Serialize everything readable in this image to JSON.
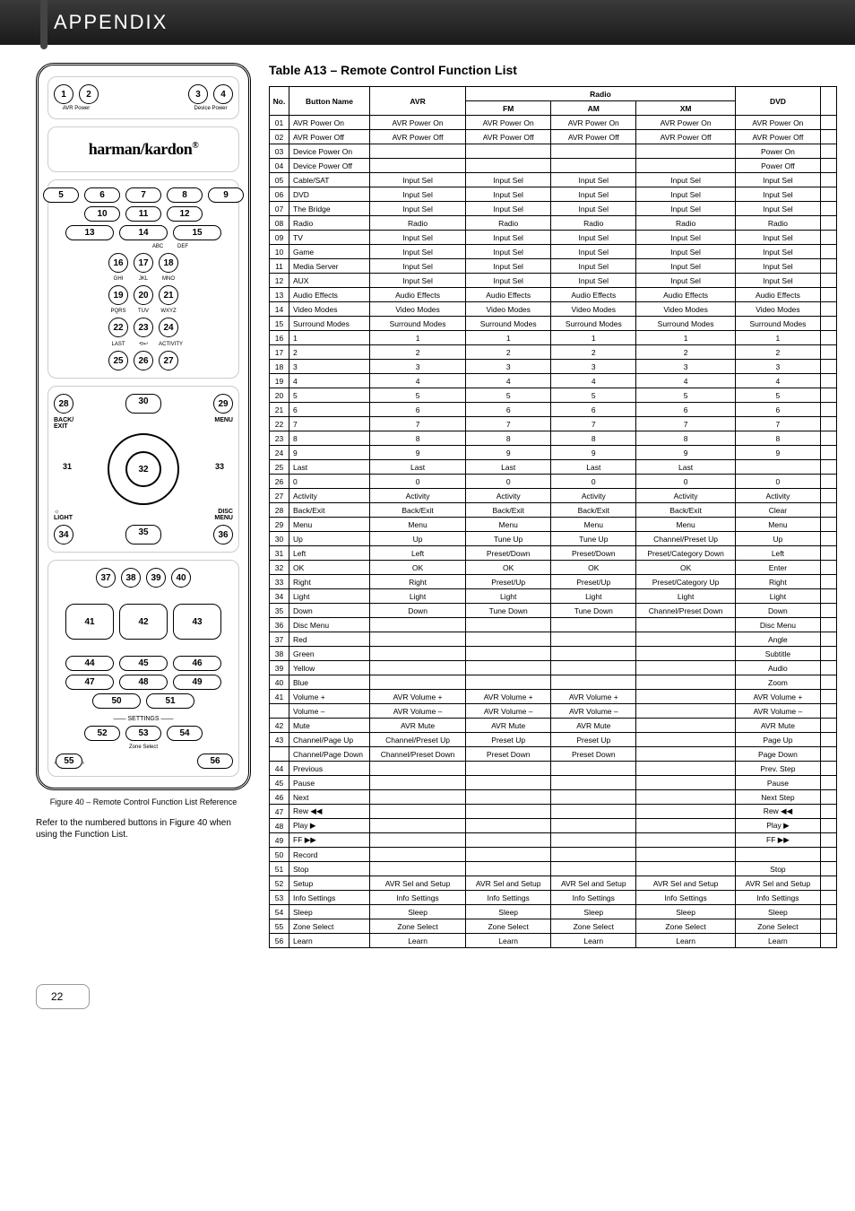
{
  "header": {
    "title": "APPENDIX"
  },
  "remote": {
    "brand": "harman/kardon",
    "top_labels": {
      "avr_power": "AVR Power",
      "device_power": "Device Power"
    },
    "keypad_sublabels": [
      "ABC",
      "DEF",
      "GHI",
      "JKL",
      "MNO",
      "PQRS",
      "TUV",
      "WXYZ",
      "LAST",
      "",
      "ACTIVITY"
    ],
    "nav": {
      "back": "BACK/\nEXIT",
      "menu": "MENU",
      "light": "LIGHT",
      "disc_menu": "DISC\nMENU"
    },
    "settings_label": "SETTINGS",
    "zone_label": "Zone Select",
    "caption": "Figure 40 – Remote Control Function List Reference",
    "note": "Refer to the numbered buttons in Figure 40 when using the Function List.",
    "numbers": [
      "1",
      "2",
      "3",
      "4",
      "5",
      "6",
      "7",
      "8",
      "9",
      "10",
      "11",
      "12",
      "13",
      "14",
      "15",
      "16",
      "17",
      "18",
      "19",
      "20",
      "21",
      "22",
      "23",
      "24",
      "25",
      "26",
      "27",
      "28",
      "29",
      "30",
      "31",
      "32",
      "33",
      "34",
      "35",
      "36",
      "37",
      "38",
      "39",
      "40",
      "41",
      "42",
      "43",
      "44",
      "45",
      "46",
      "47",
      "48",
      "49",
      "50",
      "51",
      "52",
      "53",
      "54",
      "55",
      "56"
    ]
  },
  "table": {
    "title": "Table A13 –   Remote Control Function List",
    "group_header": "Radio",
    "columns": [
      "No.",
      "Button Name",
      "AVR",
      "FM",
      "AM",
      "XM",
      "DVD",
      ""
    ],
    "rows": [
      [
        "01",
        "AVR Power On",
        "AVR Power On",
        "AVR Power On",
        "AVR Power On",
        "AVR Power On",
        "AVR Power On",
        ""
      ],
      [
        "02",
        "AVR Power Off",
        "AVR Power Off",
        "AVR Power Off",
        "AVR Power Off",
        "AVR Power Off",
        "AVR Power Off",
        ""
      ],
      [
        "03",
        "Device Power On",
        "",
        "",
        "",
        "",
        "Power On",
        ""
      ],
      [
        "04",
        "Device Power Off",
        "",
        "",
        "",
        "",
        "Power Off",
        ""
      ],
      [
        "05",
        "Cable/SAT",
        "Input Sel",
        "Input Sel",
        "Input Sel",
        "Input Sel",
        "Input Sel",
        ""
      ],
      [
        "06",
        "DVD",
        "Input Sel",
        "Input Sel",
        "Input Sel",
        "Input Sel",
        "Input Sel",
        ""
      ],
      [
        "07",
        "The Bridge",
        "Input Sel",
        "Input Sel",
        "Input Sel",
        "Input Sel",
        "Input Sel",
        ""
      ],
      [
        "08",
        "Radio",
        "Radio",
        "Radio",
        "Radio",
        "Radio",
        "Radio",
        ""
      ],
      [
        "09",
        "TV",
        "Input Sel",
        "Input Sel",
        "Input Sel",
        "Input Sel",
        "Input Sel",
        ""
      ],
      [
        "10",
        "Game",
        "Input Sel",
        "Input Sel",
        "Input Sel",
        "Input Sel",
        "Input Sel",
        ""
      ],
      [
        "11",
        "Media Server",
        "Input Sel",
        "Input Sel",
        "Input Sel",
        "Input Sel",
        "Input Sel",
        ""
      ],
      [
        "12",
        "AUX",
        "Input Sel",
        "Input Sel",
        "Input Sel",
        "Input Sel",
        "Input Sel",
        ""
      ],
      [
        "13",
        "Audio Effects",
        "Audio Effects",
        "Audio Effects",
        "Audio Effects",
        "Audio Effects",
        "Audio Effects",
        ""
      ],
      [
        "14",
        "Video Modes",
        "Video Modes",
        "Video Modes",
        "Video Modes",
        "Video Modes",
        "Video Modes",
        ""
      ],
      [
        "15",
        "Surround Modes",
        "Surround Modes",
        "Surround Modes",
        "Surround Modes",
        "Surround Modes",
        "Surround Modes",
        ""
      ],
      [
        "16",
        "1",
        "1",
        "1",
        "1",
        "1",
        "1",
        ""
      ],
      [
        "17",
        "2",
        "2",
        "2",
        "2",
        "2",
        "2",
        ""
      ],
      [
        "18",
        "3",
        "3",
        "3",
        "3",
        "3",
        "3",
        ""
      ],
      [
        "19",
        "4",
        "4",
        "4",
        "4",
        "4",
        "4",
        ""
      ],
      [
        "20",
        "5",
        "5",
        "5",
        "5",
        "5",
        "5",
        ""
      ],
      [
        "21",
        "6",
        "6",
        "6",
        "6",
        "6",
        "6",
        ""
      ],
      [
        "22",
        "7",
        "7",
        "7",
        "7",
        "7",
        "7",
        ""
      ],
      [
        "23",
        "8",
        "8",
        "8",
        "8",
        "8",
        "8",
        ""
      ],
      [
        "24",
        "9",
        "9",
        "9",
        "9",
        "9",
        "9",
        ""
      ],
      [
        "25",
        "Last",
        "Last",
        "Last",
        "Last",
        "Last",
        "",
        ""
      ],
      [
        "26",
        "0",
        "0",
        "0",
        "0",
        "0",
        "0",
        ""
      ],
      [
        "27",
        "Activity",
        "Activity",
        "Activity",
        "Activity",
        "Activity",
        "Activity",
        ""
      ],
      [
        "28",
        "Back/Exit",
        "Back/Exit",
        "Back/Exit",
        "Back/Exit",
        "Back/Exit",
        "Clear",
        ""
      ],
      [
        "29",
        "Menu",
        "Menu",
        "Menu",
        "Menu",
        "Menu",
        "Menu",
        ""
      ],
      [
        "30",
        "Up",
        "Up",
        "Tune Up",
        "Tune Up",
        "Channel/Preset Up",
        "Up",
        ""
      ],
      [
        "31",
        "Left",
        "Left",
        "Preset/Down",
        "Preset/Down",
        "Preset/Category Down",
        "Left",
        ""
      ],
      [
        "32",
        "OK",
        "OK",
        "OK",
        "OK",
        "OK",
        "Enter",
        ""
      ],
      [
        "33",
        "Right",
        "Right",
        "Preset/Up",
        "Preset/Up",
        "Preset/Category Up",
        "Right",
        ""
      ],
      [
        "34",
        "Light",
        "Light",
        "Light",
        "Light",
        "Light",
        "Light",
        ""
      ],
      [
        "35",
        "Down",
        "Down",
        "Tune Down",
        "Tune Down",
        "Channel/Preset Down",
        "Down",
        ""
      ],
      [
        "36",
        "Disc Menu",
        "",
        "",
        "",
        "",
        "Disc Menu",
        ""
      ],
      [
        "37",
        "Red",
        "",
        "",
        "",
        "",
        "Angle",
        ""
      ],
      [
        "38",
        "Green",
        "",
        "",
        "",
        "",
        "Subtitle",
        ""
      ],
      [
        "39",
        "Yellow",
        "",
        "",
        "",
        "",
        "Audio",
        ""
      ],
      [
        "40",
        "Blue",
        "",
        "",
        "",
        "",
        "Zoom",
        ""
      ],
      [
        "41",
        "Volume +",
        "AVR Volume +",
        "AVR Volume +",
        "AVR Volume +",
        "",
        "AVR Volume +",
        ""
      ],
      [
        "",
        "Volume –",
        "AVR Volume –",
        "AVR Volume –",
        "AVR Volume –",
        "",
        "AVR Volume –",
        ""
      ],
      [
        "42",
        "Mute",
        "AVR Mute",
        "AVR Mute",
        "AVR Mute",
        "",
        "AVR Mute",
        ""
      ],
      [
        "43",
        "Channel/Page Up",
        "Channel/Preset Up",
        "Preset Up",
        "Preset Up",
        "",
        "Page Up",
        ""
      ],
      [
        "",
        "Channel/Page Down",
        "Channel/Preset Down",
        "Preset Down",
        "Preset Down",
        "",
        "Page Down",
        ""
      ],
      [
        "44",
        "Previous",
        "",
        "",
        "",
        "",
        "Prev. Step",
        ""
      ],
      [
        "45",
        "Pause",
        "",
        "",
        "",
        "",
        "Pause",
        ""
      ],
      [
        "46",
        "Next",
        "",
        "",
        "",
        "",
        "Next Step",
        ""
      ],
      [
        "47",
        "Rew ◀◀",
        "",
        "",
        "",
        "",
        "Rew ◀◀",
        ""
      ],
      [
        "48",
        "Play ▶",
        "",
        "",
        "",
        "",
        "Play ▶",
        ""
      ],
      [
        "49",
        "FF ▶▶",
        "",
        "",
        "",
        "",
        "FF ▶▶",
        ""
      ],
      [
        "50",
        "Record",
        "",
        "",
        "",
        "",
        "",
        ""
      ],
      [
        "51",
        "Stop",
        "",
        "",
        "",
        "",
        "Stop",
        ""
      ],
      [
        "52",
        "Setup",
        "AVR Sel and Setup",
        "AVR Sel and Setup",
        "AVR Sel and Setup",
        "AVR Sel and Setup",
        "AVR Sel and Setup",
        ""
      ],
      [
        "53",
        "Info Settings",
        "Info Settings",
        "Info Settings",
        "Info Settings",
        "Info Settings",
        "Info Settings",
        ""
      ],
      [
        "54",
        "Sleep",
        "Sleep",
        "Sleep",
        "Sleep",
        "Sleep",
        "Sleep",
        ""
      ],
      [
        "55",
        "Zone Select",
        "Zone Select",
        "Zone Select",
        "Zone Select",
        "Zone Select",
        "Zone Select",
        ""
      ],
      [
        "56",
        "Learn",
        "Learn",
        "Learn",
        "Learn",
        "Learn",
        "Learn",
        ""
      ]
    ]
  },
  "footer": {
    "page": "22"
  }
}
